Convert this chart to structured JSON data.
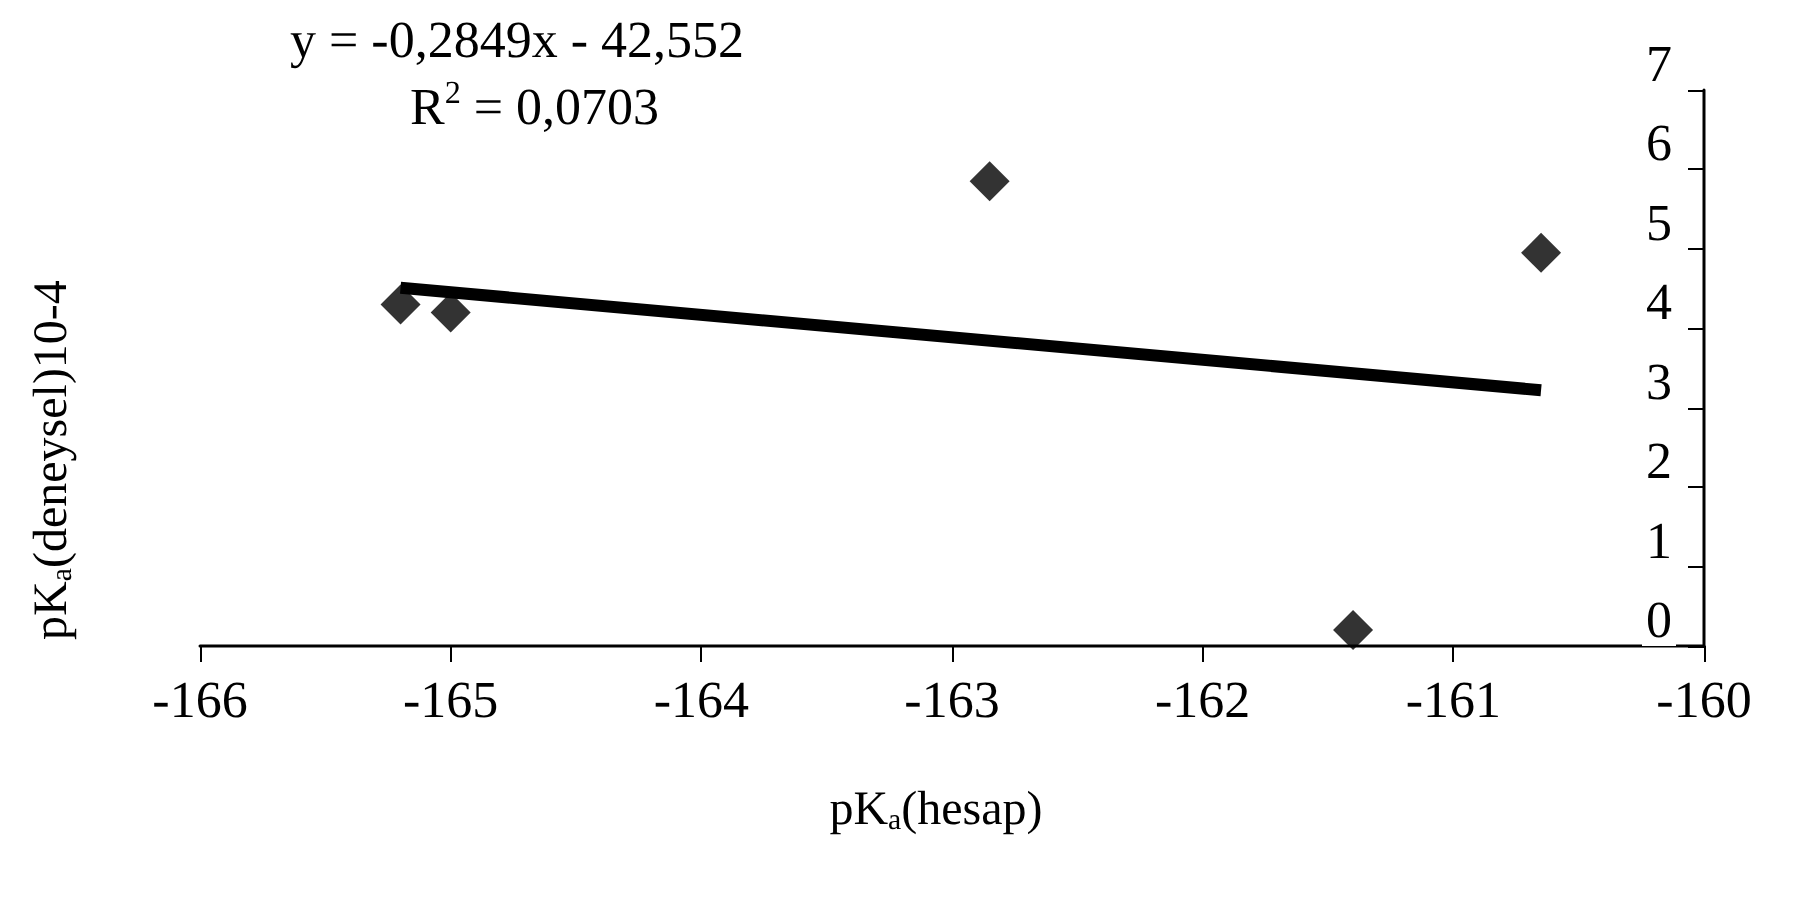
{
  "chart_data": {
    "type": "scatter",
    "xlabel": "pK$_{a}$(hesap)",
    "ylabel": "pK$_{a}$(deneysel)10-4",
    "annotations": [
      "y = -0,2849x - 42,552",
      "R$^{2}$ = 0,0703"
    ],
    "series": [
      {
        "color": "#000000",
        "marker": "diamond",
        "x": [
          -165.2,
          -165.0,
          -162.85,
          -161.4,
          -160.65
        ],
        "values": [
          4.3,
          4.2,
          5.85,
          0.2,
          4.95
        ]
      },
      {
        "type": "line",
        "color": "#000000",
        "marker": "none",
        "line_style": "solid",
        "x": [
          -165.2,
          -160.65
        ],
        "values": [
          4.51,
          3.22
        ]
      }
    ],
    "xlim": [
      -166,
      -160
    ],
    "xticks": [
      -166,
      -165,
      -164,
      -163,
      -162,
      -161,
      -160
    ],
    "ylim": [
      0,
      7
    ],
    "yticks": [
      0,
      1,
      2,
      3,
      4,
      5,
      6,
      7
    ],
    "grid": false
  }
}
